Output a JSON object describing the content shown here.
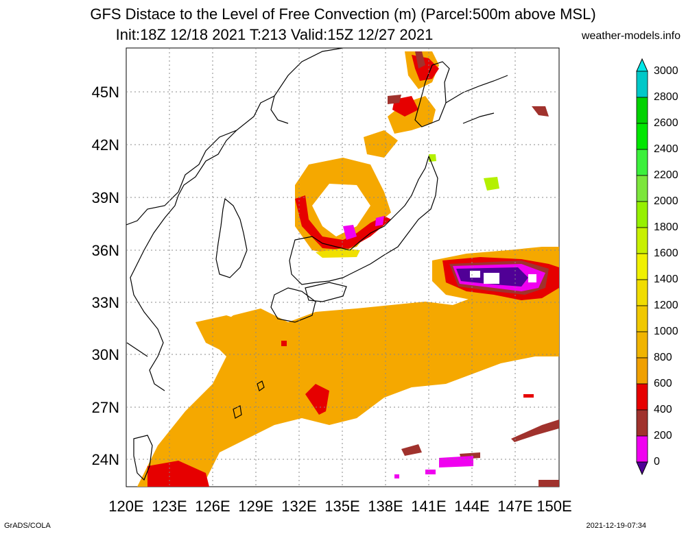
{
  "header": {
    "title_line1": "GFS Distace to the Level of Free Convection (m) (Parcel:500m above MSL)",
    "title_line2": "Init:18Z 12/18 2021 T:213 Valid:15Z 12/27 2021",
    "site": "weather-models.info"
  },
  "footer": {
    "left": "GrADS/COLA",
    "right": "2021-12-19-07:34"
  },
  "map": {
    "lat_labels": [
      "45N",
      "42N",
      "39N",
      "36N",
      "33N",
      "30N",
      "27N",
      "24N"
    ],
    "lon_labels": [
      "120E",
      "123E",
      "126E",
      "129E",
      "132E",
      "135E",
      "138E",
      "141E",
      "144E",
      "147E",
      "150E"
    ]
  },
  "colorbar": {
    "labels": [
      "3000",
      "2800",
      "2600",
      "2400",
      "2200",
      "2000",
      "1800",
      "1600",
      "1400",
      "1200",
      "1000",
      "800",
      "600",
      "400",
      "200",
      "0"
    ],
    "colors": [
      "#00e6e6",
      "#00c8c8",
      "#00d200",
      "#00e600",
      "#3cf03c",
      "#7ce63c",
      "#96f000",
      "#c8f000",
      "#f0f000",
      "#f0dc00",
      "#f0c800",
      "#f0b400",
      "#f0a000",
      "#e60000",
      "#a0322d",
      "#f000f0",
      "#500096"
    ]
  },
  "colors": {
    "orange": "#f5a800",
    "red": "#e60000",
    "brown": "#a0322d",
    "magenta": "#f000f0",
    "purple": "#500096",
    "yellow": "#f0e000",
    "lime": "#b4f000"
  }
}
